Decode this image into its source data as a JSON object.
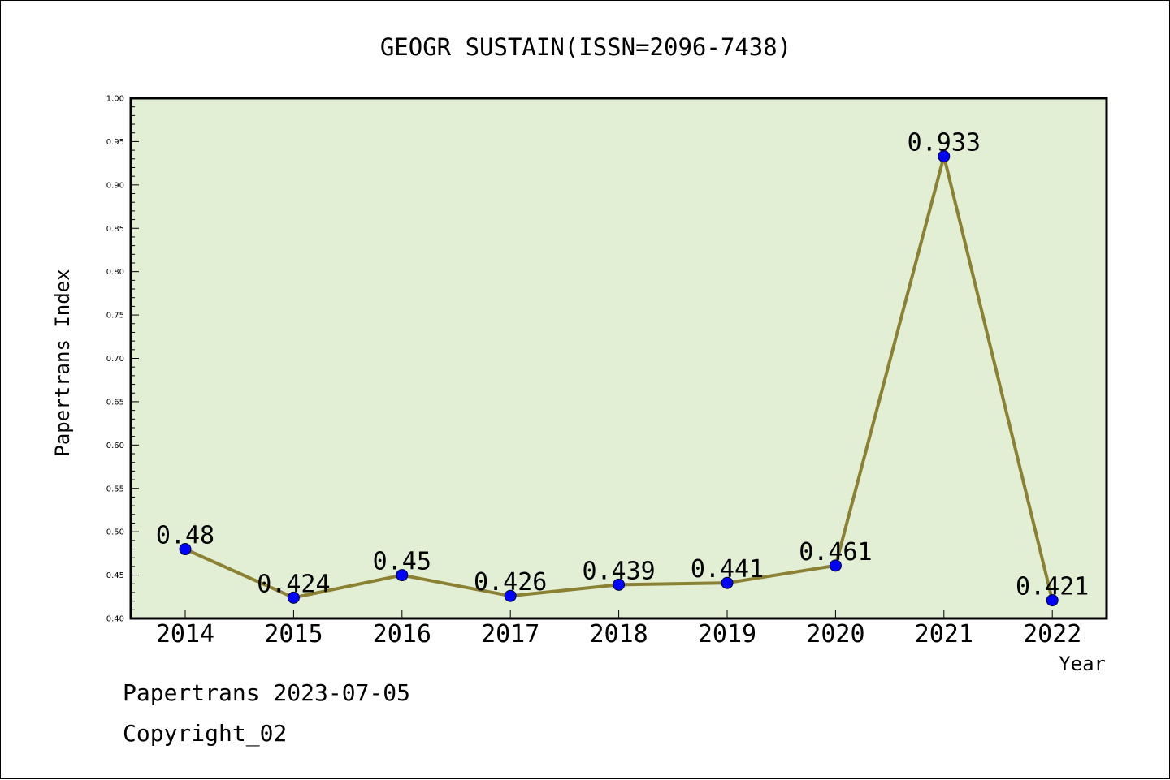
{
  "chart_data": {
    "type": "line",
    "title": "GEOGR SUSTAIN(ISSN=2096-7438)",
    "xlabel": "Year",
    "ylabel": "Papertrans Index",
    "categories": [
      "2014",
      "2015",
      "2016",
      "2017",
      "2018",
      "2019",
      "2020",
      "2021",
      "2022"
    ],
    "values": [
      0.48,
      0.424,
      0.45,
      0.426,
      0.439,
      0.441,
      0.461,
      0.933,
      0.421
    ],
    "data_labels": [
      "0.48",
      "0.424",
      "0.45",
      "0.426",
      "0.439",
      "0.441",
      "0.461",
      "0.933",
      "0.421"
    ],
    "ylim": [
      0.4,
      1.0
    ],
    "yticks": [
      "0.40",
      "0.45",
      "0.50",
      "0.55",
      "0.60",
      "0.65",
      "0.70",
      "0.75",
      "0.80",
      "0.85",
      "0.90",
      "0.95",
      "1.00"
    ],
    "grid": false,
    "colors": {
      "plot_background": "#e2efd5",
      "line": "#8b8133",
      "marker": "#0000ff"
    }
  },
  "footer": {
    "source": "Papertrans 2023-07-05",
    "copyright": "Copyright_02"
  }
}
